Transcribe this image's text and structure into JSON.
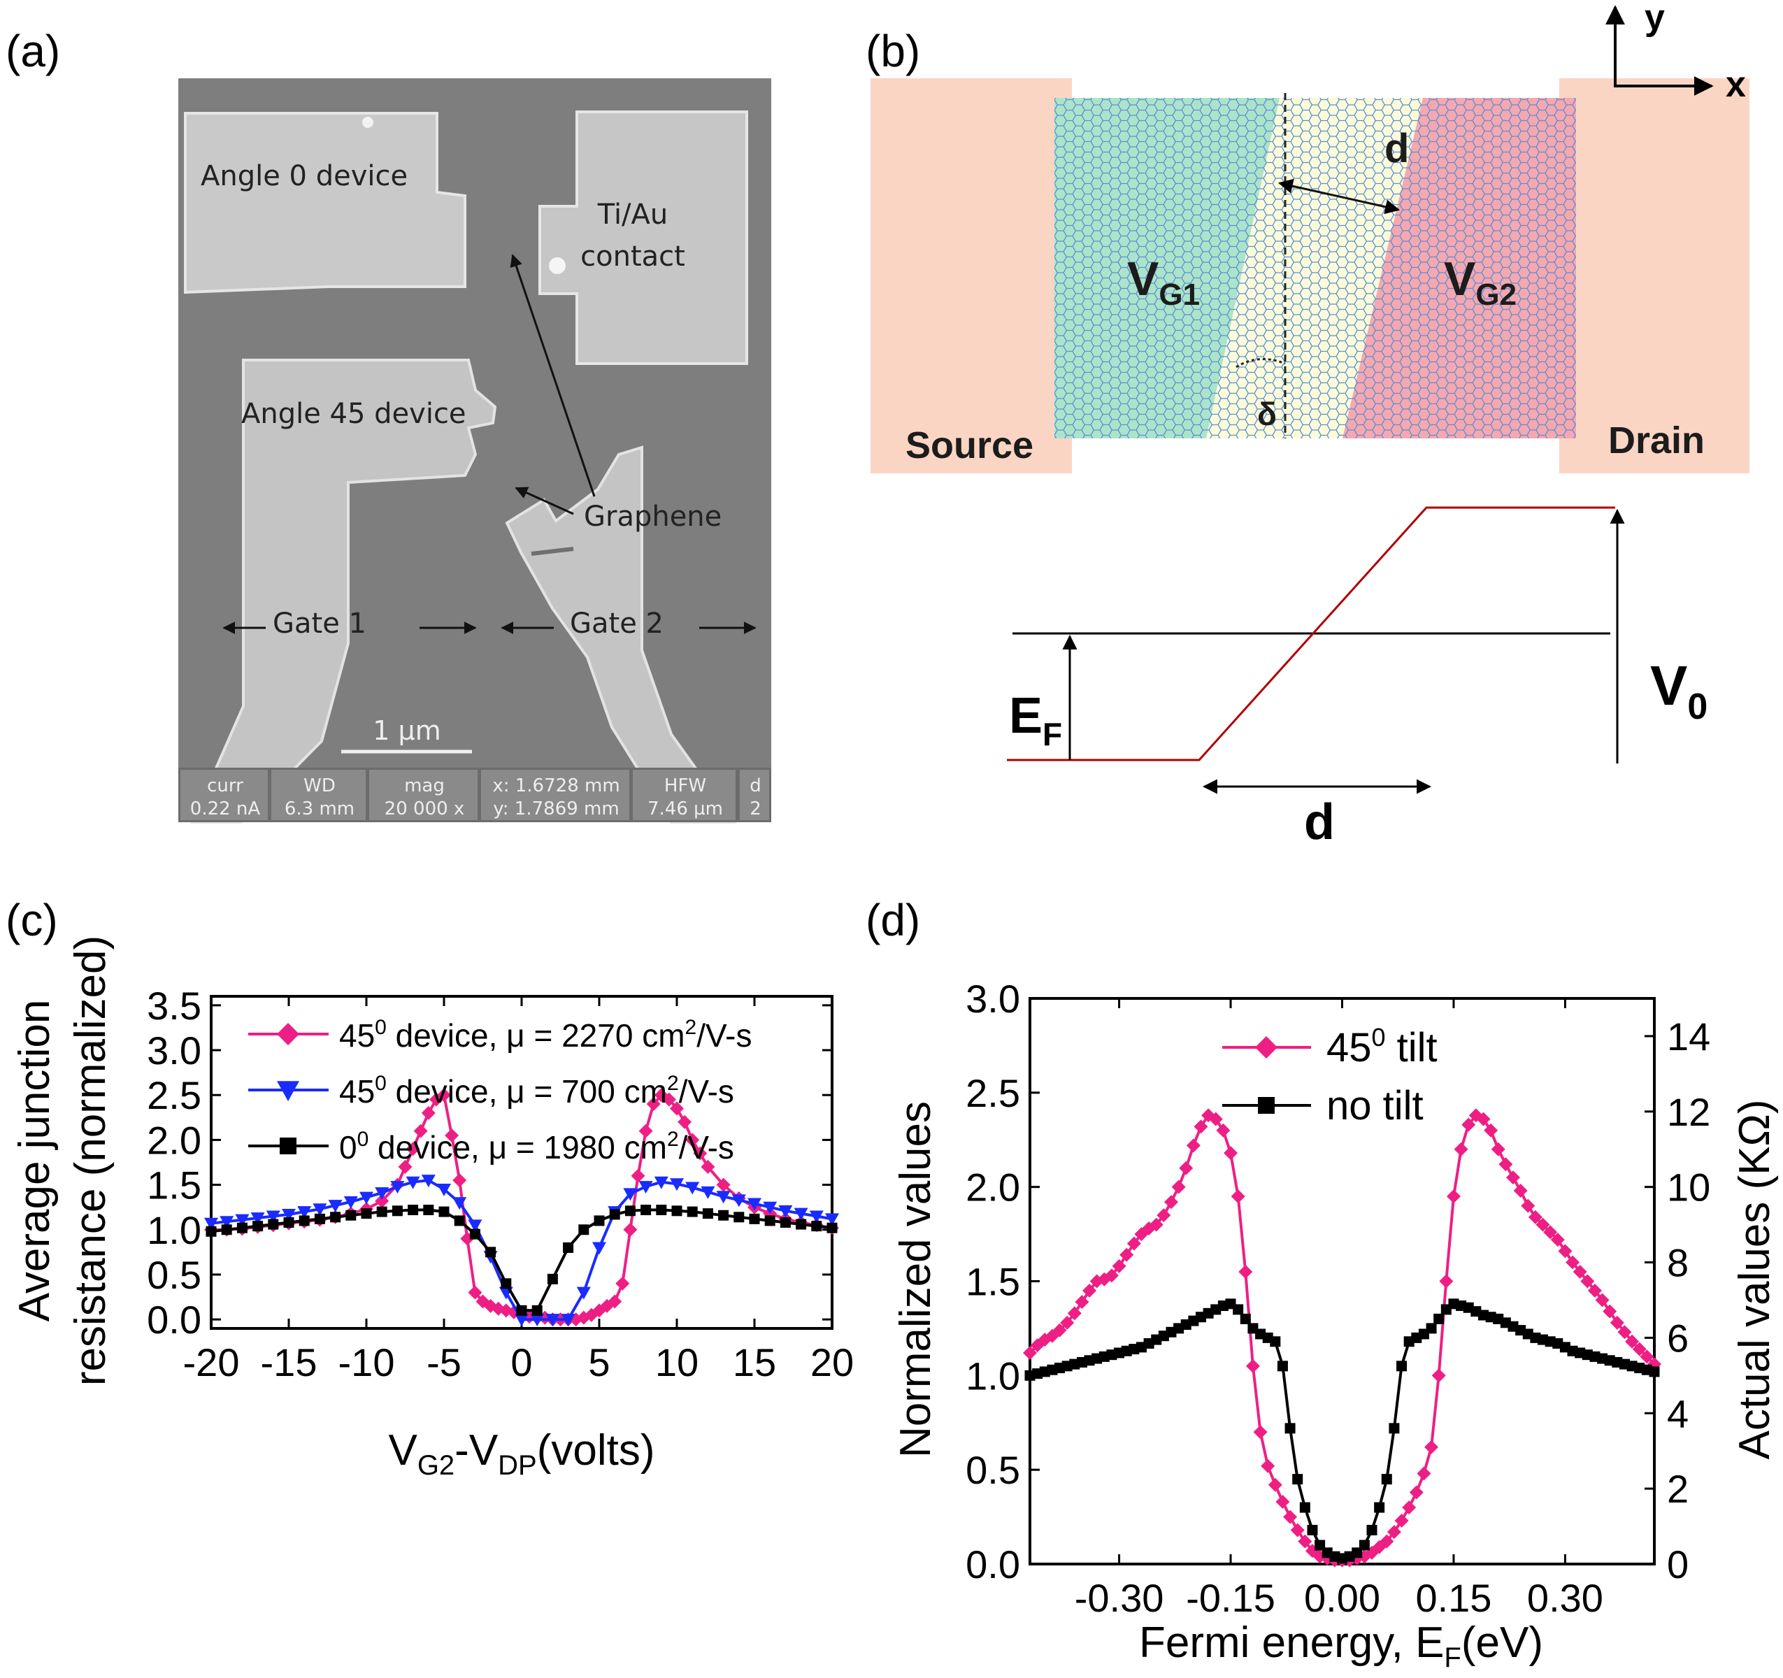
{
  "panels": {
    "a": {
      "label": "(a)",
      "sem": {
        "labels": {
          "angle0": "Angle 0 device",
          "contact1": "Ti/Au",
          "contact2": "contact",
          "angle45": "Angle 45 device",
          "graphene": "Graphene",
          "gate1": "Gate 1",
          "gate2": "Gate 2",
          "scalebar": "1 µm"
        },
        "info_bar": [
          {
            "top": "curr",
            "bottom": "0.22 nA"
          },
          {
            "top": "WD",
            "bottom": "6.3 mm"
          },
          {
            "top": "mag",
            "bottom": "20 000 x"
          },
          {
            "top": "x: 1.6728 mm",
            "bottom": "y: 1.7869 mm"
          },
          {
            "top": "HFW",
            "bottom": "7.46 µm"
          },
          {
            "top": "d",
            "bottom": "2"
          }
        ]
      }
    },
    "b": {
      "label": "(b)",
      "source": "Source",
      "drain": "Drain",
      "vg1": {
        "main": "V",
        "sub": "G1"
      },
      "vg2": {
        "main": "V",
        "sub": "G2"
      },
      "d_top": "d",
      "delta": "δ",
      "axis_x": "x",
      "axis_y": "y",
      "ef": {
        "main": "E",
        "sub": "F"
      },
      "v0": {
        "main": "V",
        "sub": "0"
      },
      "d_bottom": "d",
      "colors": {
        "contact": "#fbd5c4",
        "gate1": "#a8e3c8",
        "gate2": "#f4a3ad",
        "channel": "#fbfbd9",
        "lattice": "#5b8fd6",
        "potential": "#b00000"
      }
    },
    "c": {
      "label": "(c)"
    },
    "d": {
      "label": "(d)"
    }
  },
  "chart_data": [
    {
      "id": "c",
      "type": "line",
      "xlabel": {
        "parts": [
          "V",
          "G2",
          "-V",
          "DP",
          "(volts)"
        ]
      },
      "ylabel": [
        "Average junction",
        "resistance (normalized)"
      ],
      "xlim": [
        -20,
        20
      ],
      "ylim": [
        -0.1,
        3.6
      ],
      "xticks": [
        -20,
        -15,
        -10,
        -5,
        0,
        5,
        10,
        15,
        20
      ],
      "yticks": [
        0.0,
        0.5,
        1.0,
        1.5,
        2.0,
        2.5,
        3.0,
        3.5
      ],
      "ytick_labels": [
        "0.0",
        "0.5",
        "1.0",
        "1.5",
        "2.0",
        "2.5",
        "3.0",
        "3.5"
      ],
      "legend_position": "top-right",
      "series": [
        {
          "legend": {
            "pre": "45",
            "sup": "0",
            "mid": " device, μ = 2270 cm",
            "sup2": "2",
            "post": "/V-s"
          },
          "color": "#ee1f84",
          "marker": "diamond",
          "x": [
            -20,
            -19,
            -18,
            -17,
            -16,
            -15,
            -14,
            -13,
            -12,
            -11,
            -10,
            -9,
            -8,
            -7.5,
            -7,
            -6.5,
            -6,
            -5.5,
            -5,
            -4.5,
            -4,
            -3.5,
            -3,
            -2.5,
            -2,
            -1.5,
            -1,
            -0.5,
            0,
            0.5,
            1,
            1.5,
            2,
            2.5,
            3,
            3.5,
            4,
            4.5,
            5,
            5.5,
            6,
            6.5,
            7,
            7.5,
            8,
            8.5,
            9,
            9.5,
            10,
            10.5,
            11,
            11.5,
            12,
            13,
            14,
            15,
            16,
            17,
            18,
            19,
            20
          ],
          "y": [
            1.0,
            1.0,
            1.01,
            1.03,
            1.05,
            1.07,
            1.09,
            1.11,
            1.14,
            1.18,
            1.23,
            1.32,
            1.5,
            1.7,
            1.9,
            2.1,
            2.3,
            2.45,
            2.5,
            2.05,
            1.55,
            0.9,
            0.3,
            0.2,
            0.15,
            0.12,
            0.1,
            0.08,
            0.05,
            0.03,
            0.02,
            0.02,
            0.0,
            0.0,
            0.0,
            0.0,
            0.02,
            0.05,
            0.1,
            0.15,
            0.2,
            0.4,
            1.0,
            1.6,
            2.1,
            2.4,
            2.5,
            2.45,
            2.35,
            2.2,
            2.0,
            1.85,
            1.7,
            1.5,
            1.35,
            1.25,
            1.18,
            1.12,
            1.08,
            1.05,
            1.02
          ]
        },
        {
          "legend": {
            "pre": "45",
            "sup": "0",
            "mid": " device, μ = 700 cm",
            "sup2": "2",
            "post": "/V-s"
          },
          "color": "#1a2bff",
          "marker": "triangle-down",
          "x": [
            -20,
            -19,
            -18,
            -17,
            -16,
            -15,
            -14,
            -13,
            -12,
            -11,
            -10,
            -9,
            -8,
            -7,
            -6,
            -5,
            -4,
            -3,
            -2,
            -1,
            0,
            1,
            2,
            3,
            4,
            5,
            6,
            7,
            8,
            9,
            10,
            11,
            12,
            13,
            14,
            15,
            16,
            17,
            18,
            19,
            20
          ],
          "y": [
            1.07,
            1.09,
            1.11,
            1.13,
            1.15,
            1.17,
            1.2,
            1.23,
            1.27,
            1.31,
            1.36,
            1.41,
            1.48,
            1.53,
            1.55,
            1.45,
            1.3,
            1.05,
            0.7,
            0.3,
            0.0,
            0.0,
            0.0,
            0.0,
            0.3,
            0.8,
            1.2,
            1.4,
            1.48,
            1.53,
            1.51,
            1.47,
            1.42,
            1.37,
            1.33,
            1.29,
            1.25,
            1.21,
            1.18,
            1.15,
            1.12
          ]
        },
        {
          "legend": {
            "pre": "0",
            "sup": "0",
            "mid": " device, μ = 1980 cm",
            "sup2": "2",
            "post": "/V-s"
          },
          "color": "#000000",
          "marker": "square",
          "x": [
            -20,
            -19,
            -18,
            -17,
            -16,
            -15,
            -14,
            -13,
            -12,
            -11,
            -10,
            -9,
            -8,
            -7,
            -6,
            -5,
            -4,
            -3,
            -2,
            -1,
            0,
            1,
            2,
            3,
            4,
            5,
            6,
            7,
            8,
            9,
            10,
            11,
            12,
            13,
            14,
            15,
            16,
            17,
            18,
            19,
            20
          ],
          "y": [
            0.98,
            1.0,
            1.02,
            1.04,
            1.06,
            1.08,
            1.1,
            1.12,
            1.14,
            1.16,
            1.18,
            1.2,
            1.21,
            1.22,
            1.22,
            1.2,
            1.1,
            0.95,
            0.75,
            0.4,
            0.1,
            0.1,
            0.45,
            0.8,
            1.0,
            1.1,
            1.17,
            1.21,
            1.22,
            1.22,
            1.21,
            1.2,
            1.18,
            1.16,
            1.14,
            1.12,
            1.1,
            1.08,
            1.06,
            1.04,
            1.02
          ]
        }
      ]
    },
    {
      "id": "d",
      "type": "line",
      "xlabel": {
        "parts": [
          "Fermi energy, E",
          "F",
          "(eV)"
        ]
      },
      "ylabel": [
        "Normalized values"
      ],
      "ylabel_right": "Actual values (KΩ)",
      "xlim": [
        -0.42,
        0.42
      ],
      "ylim": [
        0.0,
        3.0
      ],
      "y2lim": [
        0,
        15
      ],
      "xticks": [
        -0.3,
        -0.15,
        0.0,
        0.15,
        0.3
      ],
      "xtick_labels": [
        "-0.30",
        "-0.15",
        "0.00",
        "0.15",
        "0.30"
      ],
      "yticks": [
        0.0,
        0.5,
        1.0,
        1.5,
        2.0,
        2.5,
        3.0
      ],
      "ytick_labels": [
        "0.0",
        "0.5",
        "1.0",
        "1.5",
        "2.0",
        "2.5",
        "3.0"
      ],
      "y2ticks": [
        0,
        2,
        4,
        6,
        8,
        10,
        12,
        14
      ],
      "legend_position": "top-center",
      "series": [
        {
          "legend": {
            "pre": "45",
            "sup": "0",
            "post": " tilt"
          },
          "color": "#ee1f84",
          "marker": "diamond",
          "x": [
            -0.42,
            -0.41,
            -0.4,
            -0.39,
            -0.38,
            -0.37,
            -0.36,
            -0.35,
            -0.34,
            -0.33,
            -0.32,
            -0.31,
            -0.3,
            -0.29,
            -0.28,
            -0.27,
            -0.26,
            -0.25,
            -0.24,
            -0.23,
            -0.22,
            -0.21,
            -0.2,
            -0.19,
            -0.18,
            -0.17,
            -0.16,
            -0.15,
            -0.14,
            -0.13,
            -0.12,
            -0.11,
            -0.1,
            -0.09,
            -0.08,
            -0.07,
            -0.06,
            -0.05,
            -0.04,
            -0.03,
            -0.02,
            -0.01,
            0.0,
            0.01,
            0.02,
            0.03,
            0.04,
            0.05,
            0.06,
            0.07,
            0.08,
            0.09,
            0.1,
            0.11,
            0.12,
            0.13,
            0.14,
            0.15,
            0.16,
            0.17,
            0.18,
            0.19,
            0.2,
            0.21,
            0.22,
            0.23,
            0.24,
            0.25,
            0.26,
            0.27,
            0.28,
            0.29,
            0.3,
            0.31,
            0.32,
            0.33,
            0.34,
            0.35,
            0.36,
            0.37,
            0.38,
            0.39,
            0.4,
            0.41,
            0.42
          ],
          "y": [
            1.12,
            1.16,
            1.19,
            1.21,
            1.24,
            1.28,
            1.33,
            1.39,
            1.45,
            1.5,
            1.51,
            1.53,
            1.58,
            1.64,
            1.7,
            1.75,
            1.78,
            1.8,
            1.85,
            1.92,
            2.0,
            2.1,
            2.22,
            2.32,
            2.38,
            2.36,
            2.3,
            2.18,
            1.95,
            1.55,
            1.05,
            0.7,
            0.52,
            0.42,
            0.33,
            0.25,
            0.18,
            0.12,
            0.07,
            0.04,
            0.03,
            0.02,
            0.02,
            0.02,
            0.03,
            0.04,
            0.06,
            0.09,
            0.12,
            0.17,
            0.23,
            0.3,
            0.38,
            0.48,
            0.62,
            1.0,
            1.5,
            1.95,
            2.2,
            2.33,
            2.38,
            2.36,
            2.3,
            2.2,
            2.12,
            2.05,
            1.98,
            1.9,
            1.84,
            1.8,
            1.76,
            1.72,
            1.66,
            1.6,
            1.55,
            1.5,
            1.45,
            1.4,
            1.34,
            1.28,
            1.23,
            1.18,
            1.14,
            1.1,
            1.06
          ]
        },
        {
          "legend": {
            "pre": "no tilt",
            "sup": "",
            "post": ""
          },
          "color": "#000000",
          "marker": "square",
          "x": [
            -0.42,
            -0.41,
            -0.4,
            -0.39,
            -0.38,
            -0.37,
            -0.36,
            -0.35,
            -0.34,
            -0.33,
            -0.32,
            -0.31,
            -0.3,
            -0.29,
            -0.28,
            -0.27,
            -0.26,
            -0.25,
            -0.24,
            -0.23,
            -0.22,
            -0.21,
            -0.2,
            -0.19,
            -0.18,
            -0.17,
            -0.16,
            -0.15,
            -0.14,
            -0.13,
            -0.12,
            -0.11,
            -0.1,
            -0.09,
            -0.08,
            -0.07,
            -0.06,
            -0.05,
            -0.04,
            -0.03,
            -0.02,
            -0.01,
            0.0,
            0.01,
            0.02,
            0.03,
            0.04,
            0.05,
            0.06,
            0.07,
            0.08,
            0.09,
            0.1,
            0.11,
            0.12,
            0.13,
            0.14,
            0.15,
            0.16,
            0.17,
            0.18,
            0.19,
            0.2,
            0.21,
            0.22,
            0.23,
            0.24,
            0.25,
            0.26,
            0.27,
            0.28,
            0.29,
            0.3,
            0.31,
            0.32,
            0.33,
            0.34,
            0.35,
            0.36,
            0.37,
            0.38,
            0.39,
            0.4,
            0.41,
            0.42
          ],
          "y": [
            1.0,
            1.01,
            1.02,
            1.03,
            1.04,
            1.05,
            1.06,
            1.07,
            1.08,
            1.09,
            1.1,
            1.11,
            1.12,
            1.13,
            1.14,
            1.15,
            1.17,
            1.19,
            1.21,
            1.23,
            1.25,
            1.27,
            1.29,
            1.31,
            1.33,
            1.35,
            1.37,
            1.38,
            1.35,
            1.3,
            1.25,
            1.22,
            1.2,
            1.18,
            1.05,
            0.72,
            0.45,
            0.3,
            0.18,
            0.1,
            0.06,
            0.04,
            0.03,
            0.04,
            0.06,
            0.1,
            0.18,
            0.3,
            0.45,
            0.72,
            1.05,
            1.18,
            1.2,
            1.22,
            1.25,
            1.3,
            1.35,
            1.38,
            1.37,
            1.36,
            1.34,
            1.32,
            1.31,
            1.3,
            1.28,
            1.26,
            1.24,
            1.22,
            1.2,
            1.19,
            1.18,
            1.17,
            1.15,
            1.13,
            1.12,
            1.11,
            1.1,
            1.09,
            1.08,
            1.07,
            1.06,
            1.05,
            1.04,
            1.03,
            1.02
          ]
        }
      ]
    }
  ]
}
